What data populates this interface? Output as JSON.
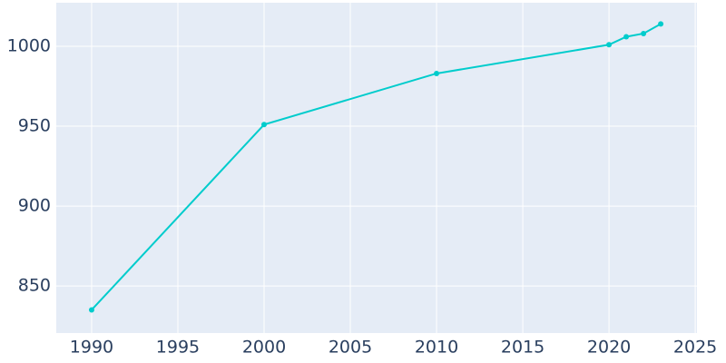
{
  "chart_data": {
    "type": "line",
    "x": [
      1990,
      2000,
      2010,
      2020,
      2021,
      2022,
      2023
    ],
    "series": [
      {
        "color": "#00cccc",
        "values": [
          835,
          951,
          983,
          1001,
          1006,
          1008,
          1014
        ]
      }
    ],
    "xlim": [
      1987.95,
      2025.1
    ],
    "xticks": [
      1990,
      1995,
      2000,
      2005,
      2010,
      2015,
      2020,
      2025
    ],
    "ylim": [
      820.5,
      1027.3
    ],
    "yticks": [
      850,
      900,
      950,
      1000
    ],
    "grid": true,
    "background": "#e5ecf6"
  }
}
